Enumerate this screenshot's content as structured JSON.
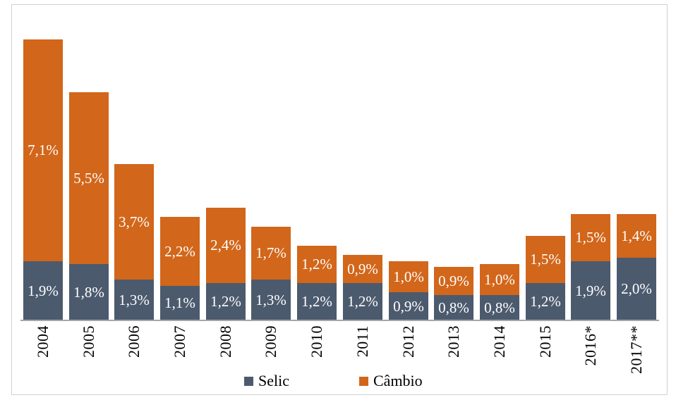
{
  "chart_data": {
    "type": "bar",
    "stacked": true,
    "title": "",
    "xlabel": "",
    "ylabel": "",
    "ylim": [
      0,
      9.0
    ],
    "grid": false,
    "y_axis_visible": false,
    "legend_position": "bottom",
    "x_tick_rotation": -90,
    "value_label_color": "#FFFFFF",
    "axis_line_color": "#A6A6A6",
    "frame_border_color": "#D1D1D1",
    "categories": [
      "2004",
      "2005",
      "2006",
      "2007",
      "2008",
      "2009",
      "2010",
      "2011",
      "2012",
      "2013",
      "2014",
      "2015",
      "2016*",
      "2017**"
    ],
    "series": [
      {
        "name": "Selic",
        "id": "selic",
        "color": "#4C5A6E",
        "values": [
          1.9,
          1.8,
          1.3,
          1.1,
          1.2,
          1.3,
          1.2,
          1.2,
          0.9,
          0.8,
          0.8,
          1.2,
          1.9,
          2.0
        ],
        "labels": [
          "1,9%",
          "1,8%",
          "1,3%",
          "1,1%",
          "1,2%",
          "1,3%",
          "1,2%",
          "1,2%",
          "0,9%",
          "0,8%",
          "0,8%",
          "1,2%",
          "1,9%",
          "2,0%"
        ]
      },
      {
        "name": "Câmbio",
        "id": "cambio",
        "color": "#D2661A",
        "values": [
          7.1,
          5.5,
          3.7,
          2.2,
          2.4,
          1.7,
          1.2,
          0.9,
          1.0,
          0.9,
          1.0,
          1.5,
          1.5,
          1.4
        ],
        "labels": [
          "7,1%",
          "5,5%",
          "3,7%",
          "2,2%",
          "2,4%",
          "1,7%",
          "1,2%",
          "0,9%",
          "1,0%",
          "0,9%",
          "1,0%",
          "1,5%",
          "1,5%",
          "1,4%"
        ]
      }
    ]
  }
}
